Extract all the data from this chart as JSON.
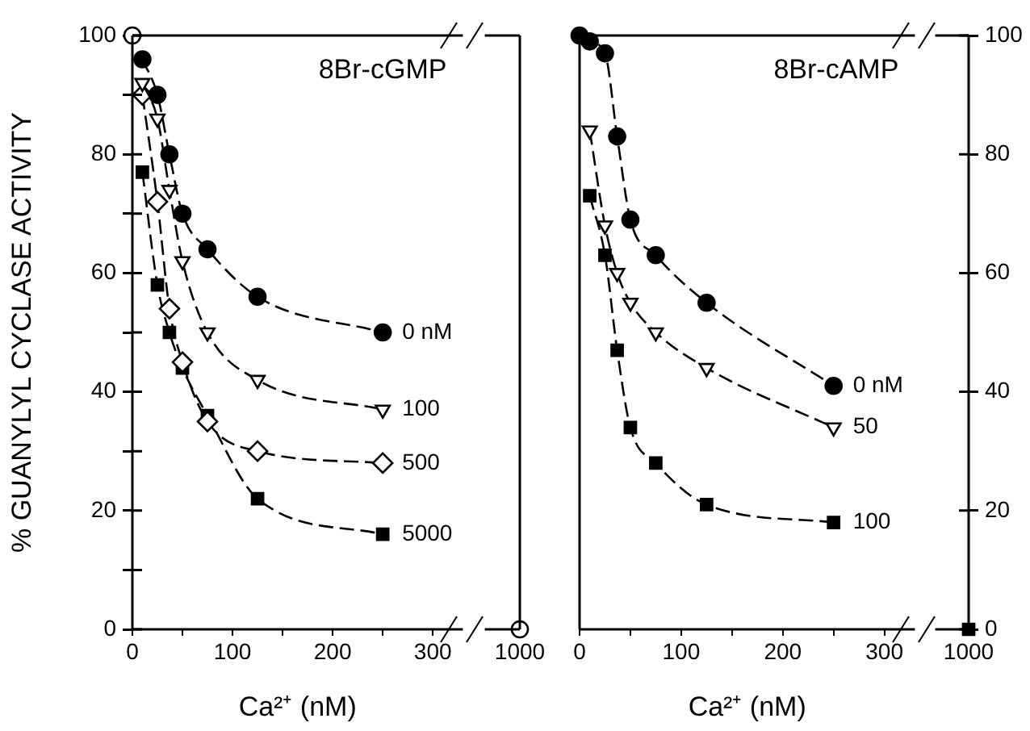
{
  "chart_data": [
    {
      "type": "line",
      "title": "8Br-cGMP",
      "xlabel": "Ca²⁺ (nM)",
      "ylabel": "% GUANYLYL CYCLASE ACTIVITY",
      "line_style": "dashed",
      "xlim": [
        0,
        330
      ],
      "xticks": [
        0,
        {
          "value": 50,
          "label": null
        },
        100,
        {
          "value": 150,
          "label": null
        },
        200,
        {
          "value": 250,
          "label": null
        },
        300
      ],
      "ylim": [
        0,
        100
      ],
      "yticks": [
        0,
        {
          "value": 10,
          "label": null
        },
        20,
        {
          "value": 30,
          "label": null
        },
        40,
        {
          "value": 50,
          "label": null
        },
        60,
        {
          "value": 70,
          "label": null
        },
        80,
        {
          "value": 90,
          "label": null
        },
        100
      ],
      "series": [
        {
          "name": "0 nM",
          "color": "#000000",
          "marker": "circle",
          "x": [
            10,
            25,
            37,
            50,
            75,
            125,
            250
          ],
          "values": [
            96,
            90,
            80,
            70,
            64,
            56,
            50
          ]
        },
        {
          "name": "100",
          "color": "#ffffff",
          "marker": "triangle",
          "x": [
            10,
            25,
            37,
            50,
            75,
            125,
            250
          ],
          "values": [
            92,
            86,
            74,
            62,
            50,
            42,
            37
          ]
        },
        {
          "name": "500",
          "color": "#ffffff",
          "marker": "diamond",
          "x": [
            10,
            25,
            37,
            50,
            75,
            125,
            250
          ],
          "values": [
            90,
            72,
            54,
            45,
            35,
            30,
            28
          ]
        },
        {
          "name": "5000",
          "color": "#000000",
          "marker": "square",
          "x": [
            10,
            25,
            37,
            50,
            75,
            125,
            250
          ],
          "values": [
            77,
            58,
            50,
            44,
            36,
            22,
            16
          ]
        },
        {
          "color": "#ffffff",
          "marker": "circle",
          "x": [
            0
          ],
          "values": [
            100
          ]
        }
      ]
    },
    {
      "type": "scatter",
      "categories": [
        "1000"
      ],
      "ylim": [
        0,
        100
      ],
      "tick_labels": "x",
      "series": [
        {
          "color": "#ffffff",
          "marker": "circle",
          "values": [
            0
          ]
        }
      ]
    },
    {
      "type": "line",
      "title": "8Br-cAMP",
      "xlabel": "Ca²⁺ (nM)",
      "line_style": "dashed",
      "xlim": [
        0,
        330
      ],
      "xticks": [
        0,
        {
          "value": 50,
          "label": null
        },
        100,
        {
          "value": 150,
          "label": null
        },
        200,
        {
          "value": 250,
          "label": null
        },
        300
      ],
      "y2lim": [
        0,
        100
      ],
      "tick_labels": "x",
      "series": [
        {
          "name": "0 nM",
          "color": "#000000",
          "marker": "circle",
          "axis": "y2",
          "x": [
            0,
            10,
            25,
            37,
            50,
            75,
            125,
            250
          ],
          "values": [
            100,
            99,
            97,
            83,
            69,
            63,
            55,
            41
          ]
        },
        {
          "name": "50",
          "color": "#ffffff",
          "marker": "triangle",
          "axis": "y2",
          "x": [
            10,
            25,
            37,
            50,
            75,
            125,
            250
          ],
          "values": [
            84,
            68,
            60,
            55,
            50,
            44,
            34
          ]
        },
        {
          "name": "100",
          "color": "#000000",
          "marker": "square",
          "axis": "y2",
          "x": [
            10,
            25,
            37,
            50,
            75,
            125,
            250
          ],
          "values": [
            73,
            63,
            47,
            34,
            28,
            21,
            18
          ]
        }
      ]
    },
    {
      "type": "scatter",
      "categories": [
        "1000"
      ],
      "y2lim": [
        0,
        100
      ],
      "y2ticks": [
        0,
        20,
        40,
        60,
        80,
        100
      ],
      "series": [
        {
          "color": "#000000",
          "marker": "square",
          "axis": "y2",
          "values": [
            0
          ]
        }
      ]
    }
  ]
}
